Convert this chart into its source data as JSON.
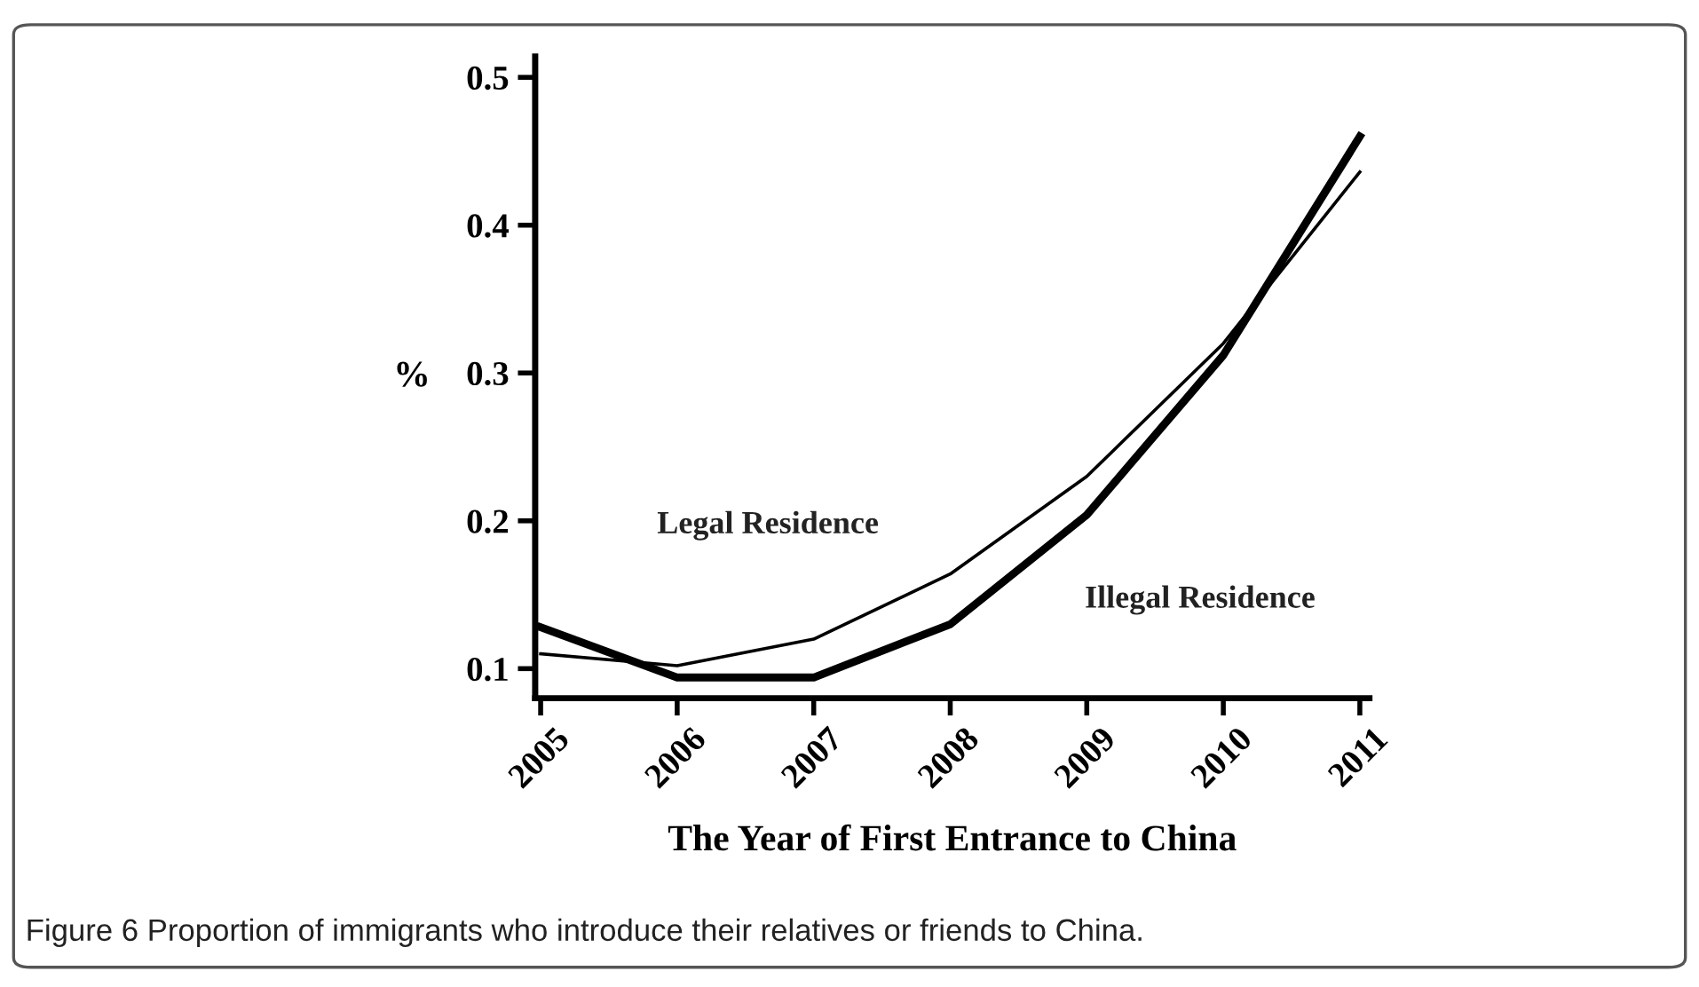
{
  "chart_data": {
    "type": "line",
    "xlabel": "The Year of First Entrance to China",
    "ylabel": "%",
    "x": [
      2005,
      2006,
      2007,
      2008,
      2009,
      2010,
      2011
    ],
    "series": [
      {
        "name": "Legal Residence",
        "color": "#000000",
        "values": [
          0.11,
          0.102,
          0.12,
          0.164,
          0.23,
          0.32,
          0.436
        ]
      },
      {
        "name": "Illegal Residence",
        "color": "#000000",
        "values": [
          0.128,
          0.094,
          0.094,
          0.13,
          0.204,
          0.312,
          0.46
        ]
      }
    ],
    "xlim": [
      2004.96,
      2011.07
    ],
    "ylim": [
      0.08,
      0.514
    ],
    "xticks": [
      2005,
      2006,
      2007,
      2008,
      2009,
      2010,
      2011
    ],
    "yticks": [
      0.1,
      0.2,
      0.3,
      0.4,
      0.5
    ],
    "grid": false,
    "legend": false,
    "marker": "none",
    "line_style": "solid",
    "annotations": [
      "Figure 6 Proportion of immigrants who introduce their relatives or friends to China."
    ]
  }
}
